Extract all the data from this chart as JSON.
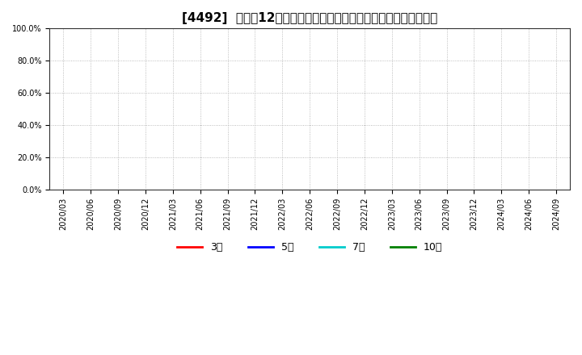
{
  "title": "[4492]  売上高12か月移動合計の対前年同期増減率の平均値の推移",
  "ylabel": "",
  "xlabel": "",
  "ylim": [
    0.0,
    1.0
  ],
  "yticks": [
    0.0,
    0.2,
    0.4,
    0.6,
    0.8,
    1.0
  ],
  "ytick_labels": [
    "0.0%",
    "20.0%",
    "40.0%",
    "60.0%",
    "80.0%",
    "100.0%"
  ],
  "x_dates": [
    "2020/03",
    "2020/06",
    "2020/09",
    "2020/12",
    "2021/03",
    "2021/06",
    "2021/09",
    "2021/12",
    "2022/03",
    "2022/06",
    "2022/09",
    "2022/12",
    "2023/03",
    "2023/06",
    "2023/09",
    "2023/12",
    "2024/03",
    "2024/06",
    "2024/09"
  ],
  "series": [
    {
      "label": "3年",
      "color": "#ff0000",
      "values": []
    },
    {
      "label": "5年",
      "color": "#0000ff",
      "values": []
    },
    {
      "label": "7年",
      "color": "#00cccc",
      "values": []
    },
    {
      "label": "10年",
      "color": "#008000",
      "values": []
    }
  ],
  "legend_colors": [
    "#ff0000",
    "#0000ff",
    "#00cccc",
    "#008000"
  ],
  "legend_labels": [
    "3年",
    "5年",
    "7年",
    "10年"
  ],
  "background_color": "#ffffff",
  "grid_color": "#aaaaaa",
  "title_fontsize": 11,
  "tick_fontsize": 7,
  "legend_fontsize": 9,
  "figure_width": 7.2,
  "figure_height": 4.4,
  "dpi": 100
}
